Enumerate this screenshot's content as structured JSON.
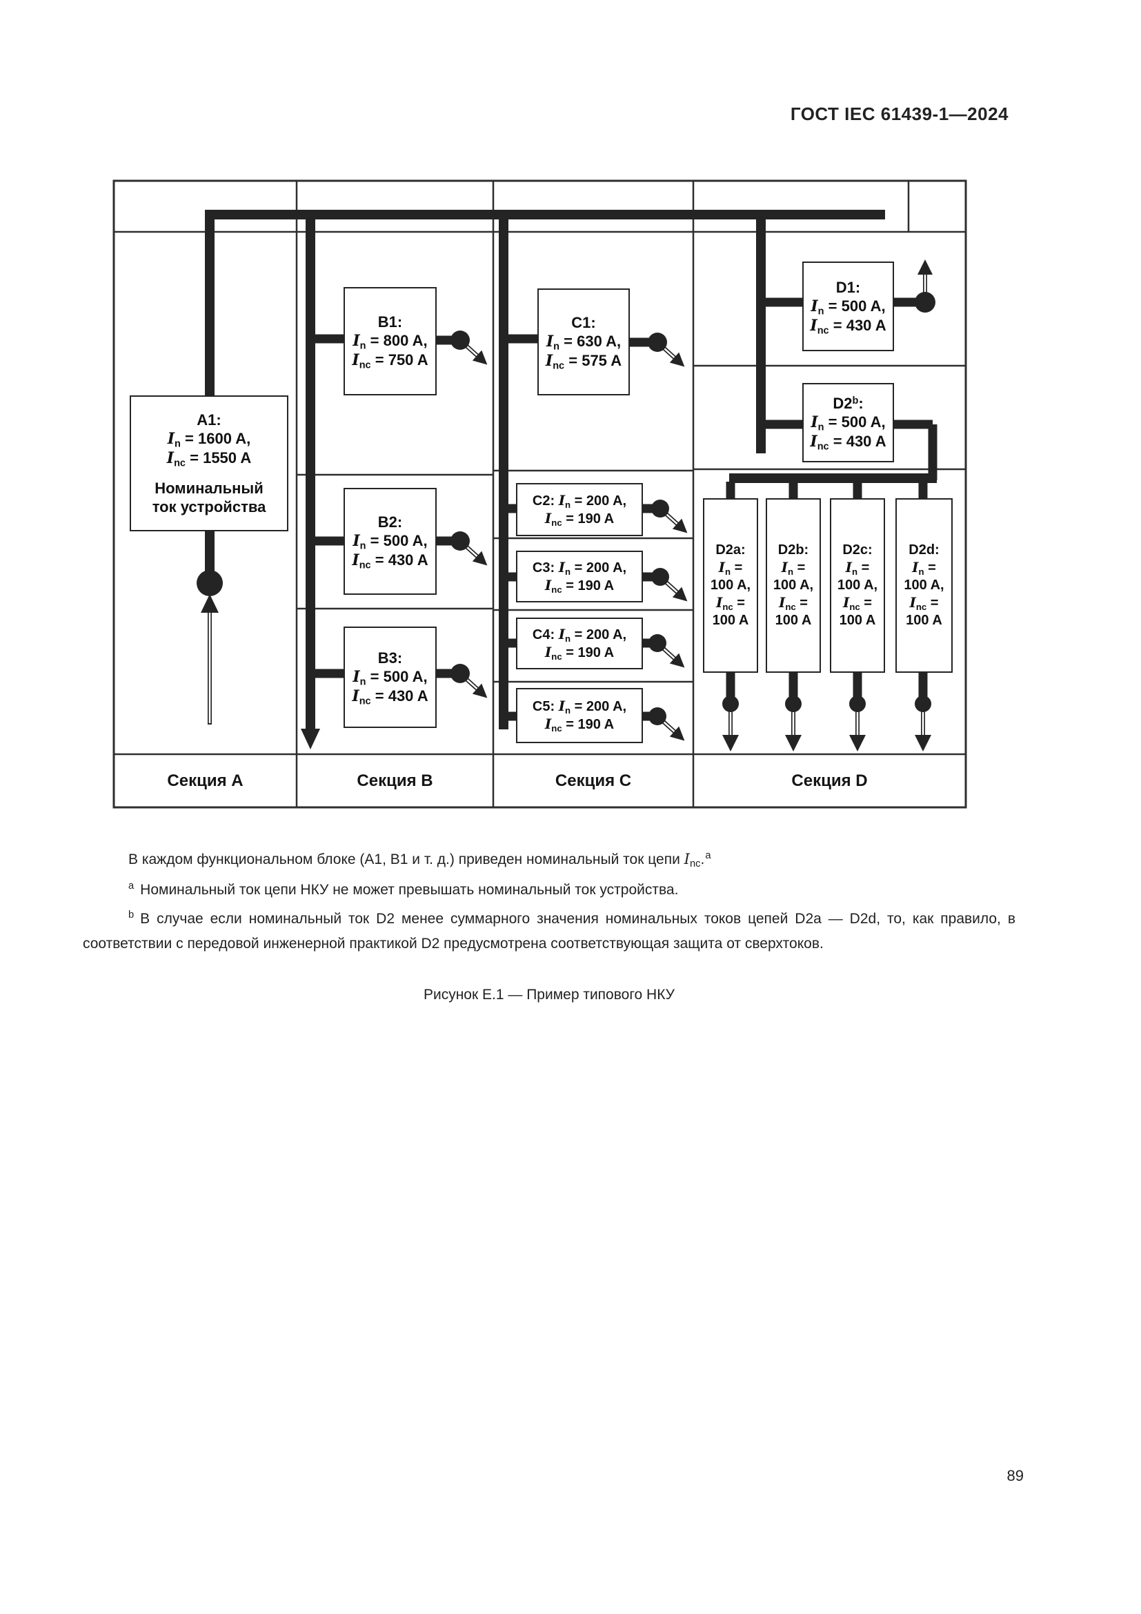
{
  "page": {
    "header": "ГОСТ IEC 61439-1—2024",
    "page_number": "89"
  },
  "figure": {
    "caption": "Рисунок Е.1 — Пример типового НКУ",
    "note_main": [
      {
        "t": "В каждом функциональном блоке (А1, В1 и т. д.) приведен номинальный ток цепи "
      },
      {
        "t": "I",
        "s": "i"
      },
      {
        "t": "nc",
        "s": "sub"
      },
      {
        "t": "."
      },
      {
        "t": "a",
        "s": "sup",
        "tail": true
      }
    ],
    "footnote_a": [
      {
        "t": "a",
        "s": "sup"
      },
      {
        "t": "Номинальный ток цепи НКУ не может превышать номинальный ток устройства."
      }
    ],
    "footnote_b": [
      {
        "t": "b",
        "s": "sup"
      },
      {
        "t": "В случае если номинальный ток D2 менее суммарного значения номинальных токов цепей D2a — D2d, то, как правило, в соответствии с передовой инженерной практикой D2 предусмотрена соответствующая защита от сверхтоков."
      }
    ]
  },
  "diagram": {
    "sections": [
      {
        "id": "A",
        "label": "Секция A"
      },
      {
        "id": "B",
        "label": "Секция B"
      },
      {
        "id": "C",
        "label": "Секция C"
      },
      {
        "id": "D",
        "label": "Секция D"
      }
    ],
    "blocks": [
      {
        "id": "A1",
        "lines": [
          [
            {
              "t": "A1:"
            }
          ],
          [
            {
              "t": "I",
              "s": "i"
            },
            {
              "t": "n",
              "s": "sub"
            },
            {
              "t": " = 1600 A,"
            }
          ],
          [
            {
              "t": "I",
              "s": "i"
            },
            {
              "t": "nc",
              "s": "sub"
            },
            {
              "t": " = 1550 A"
            }
          ],
          [
            {
              "t": "Номинальный"
            }
          ],
          [
            {
              "t": "ток устройства"
            }
          ]
        ]
      },
      {
        "id": "B1",
        "lines": [
          [
            {
              "t": "B1:"
            }
          ],
          [
            {
              "t": "I",
              "s": "i"
            },
            {
              "t": "n",
              "s": "sub"
            },
            {
              "t": " = 800 A,"
            }
          ],
          [
            {
              "t": "I",
              "s": "i"
            },
            {
              "t": "nc",
              "s": "sub"
            },
            {
              "t": " = 750 A"
            }
          ]
        ]
      },
      {
        "id": "B2",
        "lines": [
          [
            {
              "t": "B2:"
            }
          ],
          [
            {
              "t": "I",
              "s": "i"
            },
            {
              "t": "n",
              "s": "sub"
            },
            {
              "t": " = 500 A,"
            }
          ],
          [
            {
              "t": "I",
              "s": "i"
            },
            {
              "t": "nc",
              "s": "sub"
            },
            {
              "t": " = 430 A"
            }
          ]
        ]
      },
      {
        "id": "B3",
        "lines": [
          [
            {
              "t": "B3:"
            }
          ],
          [
            {
              "t": "I",
              "s": "i"
            },
            {
              "t": "n",
              "s": "sub"
            },
            {
              "t": " = 500 A,"
            }
          ],
          [
            {
              "t": "I",
              "s": "i"
            },
            {
              "t": "nc",
              "s": "sub"
            },
            {
              "t": " = 430 A"
            }
          ]
        ]
      },
      {
        "id": "C1",
        "lines": [
          [
            {
              "t": "C1:"
            }
          ],
          [
            {
              "t": "I",
              "s": "i"
            },
            {
              "t": "n",
              "s": "sub"
            },
            {
              "t": " = 630 A,"
            }
          ],
          [
            {
              "t": "I",
              "s": "i"
            },
            {
              "t": "nc",
              "s": "sub"
            },
            {
              "t": " = 575 A"
            }
          ]
        ]
      },
      {
        "id": "C2",
        "lines": [
          [
            {
              "t": "C2: "
            },
            {
              "t": "I",
              "s": "i"
            },
            {
              "t": "n",
              "s": "sub"
            },
            {
              "t": " = 200 A,"
            }
          ],
          [
            {
              "t": "I",
              "s": "i"
            },
            {
              "t": "nc",
              "s": "sub"
            },
            {
              "t": " = 190 A"
            }
          ]
        ]
      },
      {
        "id": "C3",
        "lines": [
          [
            {
              "t": "C3: "
            },
            {
              "t": "I",
              "s": "i"
            },
            {
              "t": "n",
              "s": "sub"
            },
            {
              "t": " = 200 A,"
            }
          ],
          [
            {
              "t": "I",
              "s": "i"
            },
            {
              "t": "nc",
              "s": "sub"
            },
            {
              "t": " = 190 A"
            }
          ]
        ]
      },
      {
        "id": "C4",
        "lines": [
          [
            {
              "t": "C4: "
            },
            {
              "t": "I",
              "s": "i"
            },
            {
              "t": "n",
              "s": "sub"
            },
            {
              "t": " = 200 A,"
            }
          ],
          [
            {
              "t": "I",
              "s": "i"
            },
            {
              "t": "nc",
              "s": "sub"
            },
            {
              "t": " = 190 A"
            }
          ]
        ]
      },
      {
        "id": "C5",
        "lines": [
          [
            {
              "t": "C5: "
            },
            {
              "t": "I",
              "s": "i"
            },
            {
              "t": "n",
              "s": "sub"
            },
            {
              "t": " = 200 A,"
            }
          ],
          [
            {
              "t": "I",
              "s": "i"
            },
            {
              "t": "nc",
              "s": "sub"
            },
            {
              "t": " = 190 A"
            }
          ]
        ]
      },
      {
        "id": "D1",
        "lines": [
          [
            {
              "t": "D1:"
            }
          ],
          [
            {
              "t": "I",
              "s": "i"
            },
            {
              "t": "n",
              "s": "sub"
            },
            {
              "t": " = 500 A,"
            }
          ],
          [
            {
              "t": "I",
              "s": "i"
            },
            {
              "t": "nc",
              "s": "sub"
            },
            {
              "t": " = 430 A"
            }
          ]
        ]
      },
      {
        "id": "D2",
        "lines": [
          [
            {
              "t": "D2"
            },
            {
              "t": "b",
              "s": "sup"
            },
            {
              "t": ":"
            }
          ],
          [
            {
              "t": "I",
              "s": "i"
            },
            {
              "t": "n",
              "s": "sub"
            },
            {
              "t": " = 500 A,"
            }
          ],
          [
            {
              "t": "I",
              "s": "i"
            },
            {
              "t": "nc",
              "s": "sub"
            },
            {
              "t": " = 430 A"
            }
          ]
        ]
      },
      {
        "id": "D2a",
        "lines": [
          [
            {
              "t": "D2a:"
            }
          ],
          [
            {
              "t": "I",
              "s": "i"
            },
            {
              "t": "n",
              "s": "sub"
            },
            {
              "t": " ="
            }
          ],
          [
            {
              "t": "100 A,"
            }
          ],
          [
            {
              "t": "I",
              "s": "i"
            },
            {
              "t": "nc",
              "s": "sub"
            },
            {
              "t": " ="
            }
          ],
          [
            {
              "t": "100 A"
            }
          ]
        ]
      },
      {
        "id": "D2b",
        "lines": [
          [
            {
              "t": "D2b:"
            }
          ],
          [
            {
              "t": "I",
              "s": "i"
            },
            {
              "t": "n",
              "s": "sub"
            },
            {
              "t": " ="
            }
          ],
          [
            {
              "t": "100 A,"
            }
          ],
          [
            {
              "t": "I",
              "s": "i"
            },
            {
              "t": "nc",
              "s": "sub"
            },
            {
              "t": " ="
            }
          ],
          [
            {
              "t": "100 A"
            }
          ]
        ]
      },
      {
        "id": "D2c",
        "lines": [
          [
            {
              "t": "D2c:"
            }
          ],
          [
            {
              "t": "I",
              "s": "i"
            },
            {
              "t": "n",
              "s": "sub"
            },
            {
              "t": " ="
            }
          ],
          [
            {
              "t": "100 A,"
            }
          ],
          [
            {
              "t": "I",
              "s": "i"
            },
            {
              "t": "nc",
              "s": "sub"
            },
            {
              "t": " ="
            }
          ],
          [
            {
              "t": "100 A"
            }
          ]
        ]
      },
      {
        "id": "D2d",
        "lines": [
          [
            {
              "t": "D2d:"
            }
          ],
          [
            {
              "t": "I",
              "s": "i"
            },
            {
              "t": "n",
              "s": "sub"
            },
            {
              "t": " ="
            }
          ],
          [
            {
              "t": "100 A,"
            }
          ],
          [
            {
              "t": "I",
              "s": "i"
            },
            {
              "t": "nc",
              "s": "sub"
            },
            {
              "t": " ="
            }
          ],
          [
            {
              "t": "100 A"
            }
          ]
        ]
      }
    ],
    "colors": {
      "bus": "#242424",
      "thin_line": "#2e2e2e",
      "text": "#111111",
      "background": "#ffffff"
    }
  }
}
